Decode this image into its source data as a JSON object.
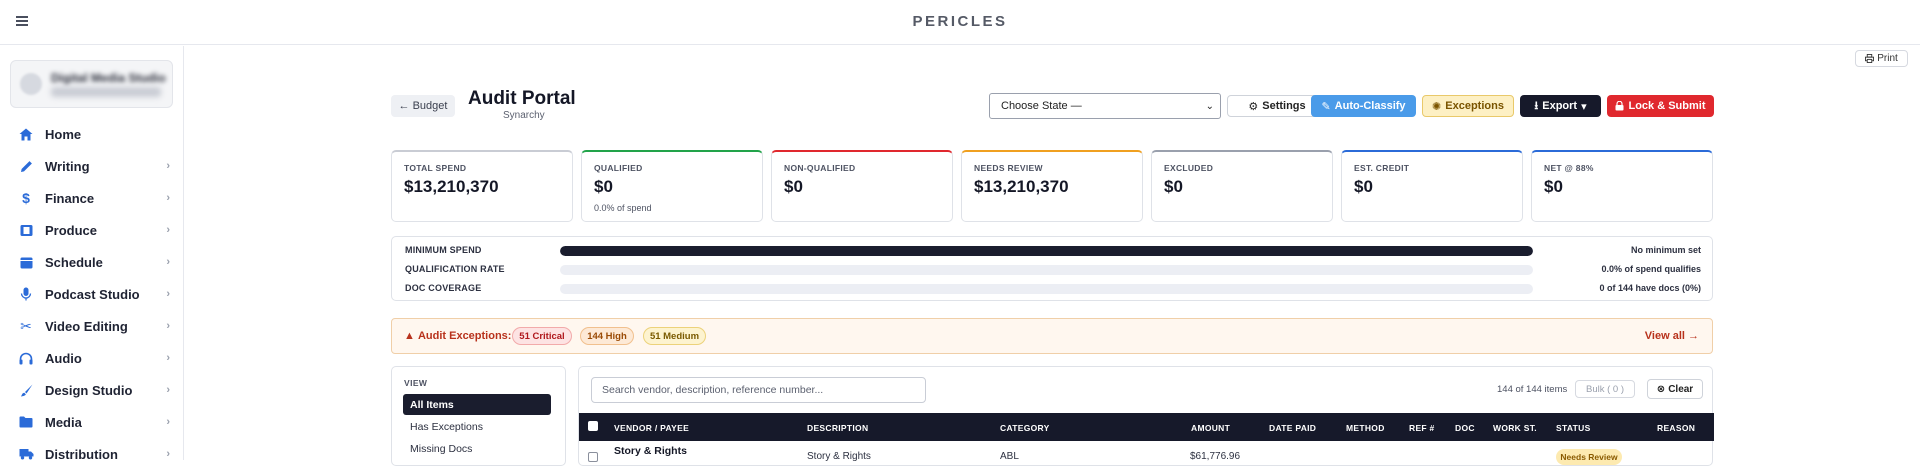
{
  "header": {
    "brand": "PERICLES"
  },
  "sidebar": {
    "org_name": "Digital Media Studio",
    "items": [
      {
        "label": "Home",
        "icon": "home-icon",
        "has_children": false
      },
      {
        "label": "Writing",
        "icon": "pencil-icon",
        "has_children": true
      },
      {
        "label": "Finance",
        "icon": "dollar-icon",
        "has_children": true
      },
      {
        "label": "Produce",
        "icon": "film-icon",
        "has_children": true
      },
      {
        "label": "Schedule",
        "icon": "calendar-icon",
        "has_children": true
      },
      {
        "label": "Podcast Studio",
        "icon": "microphone-icon",
        "has_children": true
      },
      {
        "label": "Video Editing",
        "icon": "scissors-icon",
        "has_children": true
      },
      {
        "label": "Audio",
        "icon": "headphones-icon",
        "has_children": true
      },
      {
        "label": "Design Studio",
        "icon": "brush-icon",
        "has_children": true
      },
      {
        "label": "Media",
        "icon": "folder-icon",
        "has_children": true
      },
      {
        "label": "Distribution",
        "icon": "truck-icon",
        "has_children": true
      }
    ]
  },
  "page": {
    "print_label": "Print",
    "back_label": "Budget",
    "title": "Audit Portal",
    "subtitle": "Synarchy"
  },
  "toolbar": {
    "state_select": "Choose State —",
    "settings_label": "Settings",
    "auto_classify_label": "Auto-Classify",
    "exceptions_label": "Exceptions",
    "export_label": "Export",
    "lock_label": "Lock & Submit"
  },
  "stats": [
    {
      "label": "TOTAL SPEND",
      "value": "$13,210,370",
      "note": "",
      "accent": "#c9ccd4"
    },
    {
      "label": "QUALIFIED",
      "value": "$0",
      "note": "0.0% of spend",
      "accent": "#22a34a"
    },
    {
      "label": "NON-QUALIFIED",
      "value": "$0",
      "note": "",
      "accent": "#e0282e"
    },
    {
      "label": "NEEDS REVIEW",
      "value": "$13,210,370",
      "note": "",
      "accent": "#f0a020"
    },
    {
      "label": "EXCLUDED",
      "value": "$0",
      "note": "",
      "accent": "#9aa0ad"
    },
    {
      "label": "EST. CREDIT",
      "value": "$0",
      "note": "",
      "accent": "#2b6bd8"
    },
    {
      "label": "NET @ 88%",
      "value": "$0",
      "note": "",
      "accent": "#2b6bd8"
    }
  ],
  "progress": [
    {
      "label": "MINIMUM SPEND",
      "fraction": 1.0,
      "value": "No minimum set"
    },
    {
      "label": "QUALIFICATION RATE",
      "fraction": 0.0,
      "value": "0.0% of spend qualifies"
    },
    {
      "label": "DOC COVERAGE",
      "fraction": 0.0,
      "value": "0 of 144 have docs (0%)"
    }
  ],
  "exceptions": {
    "title": "Audit Exceptions:",
    "critical": "51 Critical",
    "high": "144 High",
    "medium": "51 Medium",
    "view_all": "View all →"
  },
  "view": {
    "label": "VIEW",
    "items": [
      "All Items",
      "Has Exceptions",
      "Missing Docs"
    ]
  },
  "table": {
    "search_placeholder": "Search vendor, description, reference number...",
    "count": "144 of 144 items",
    "bulk": "Bulk ( 0 )",
    "clear": "Clear",
    "columns": [
      "VENDOR / PAYEE",
      "DESCRIPTION",
      "CATEGORY",
      "AMOUNT",
      "DATE PAID",
      "METHOD",
      "REF #",
      "DOC",
      "WORK ST.",
      "STATUS",
      "REASON"
    ],
    "rows": [
      {
        "vendor": "Story & Rights",
        "description": "Story & Rights",
        "category": "ABL",
        "amount": "$61,776.96",
        "status": "Needs Review"
      }
    ]
  }
}
